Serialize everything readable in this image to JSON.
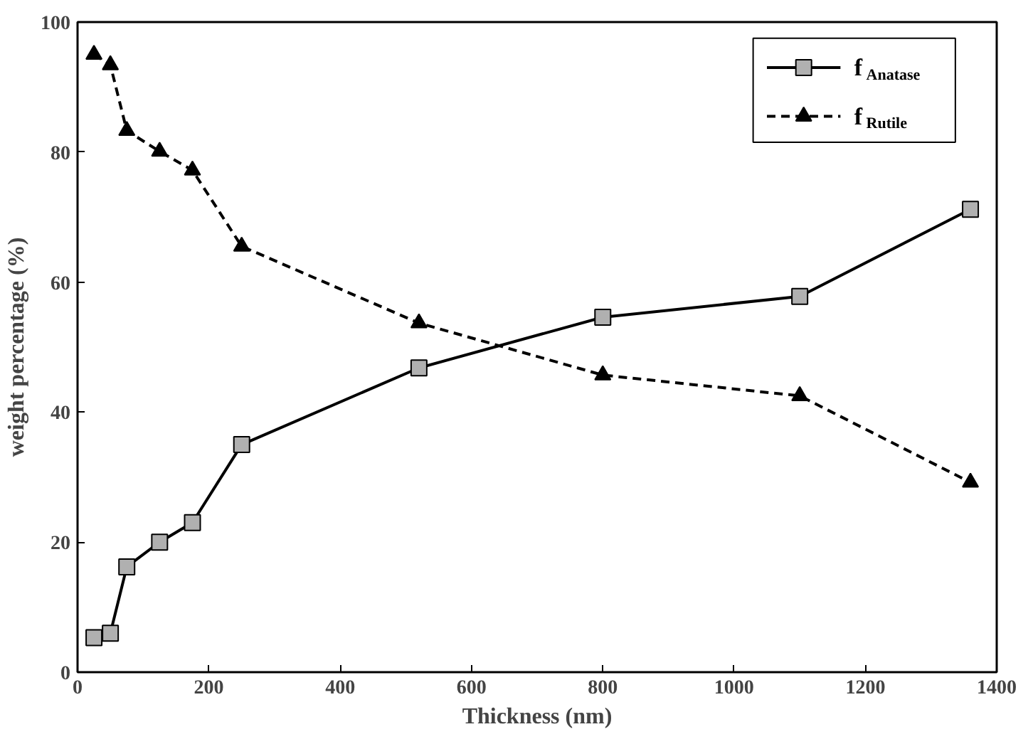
{
  "chart_data": {
    "type": "line",
    "xlabel": "Thickness (nm)",
    "ylabel": "weight percentage (%)",
    "x": [
      25,
      50,
      75,
      125,
      175,
      250,
      520,
      800,
      1100,
      1360
    ],
    "series": [
      {
        "name": "f$_{Anatase}$",
        "color": "#000000",
        "colors": [
          "#b0b0b0",
          "#b0b0b0",
          "#b0b0b0",
          "#b0b0b0",
          "#b0b0b0",
          "#b0b0b0",
          "#b0b0b0",
          "#b0b0b0",
          "#b0b0b0",
          "#b0b0b0"
        ],
        "marker": "square",
        "line_style": "solid",
        "values": [
          5.3,
          6,
          16.2,
          20,
          23,
          35,
          46.8,
          54.6,
          57.8,
          71.2
        ]
      },
      {
        "name": "f$_{Rutile}$",
        "color": "#000000",
        "colors": [
          "#000000",
          "#000000",
          "#000000",
          "#000000",
          "#000000",
          "#000000",
          "#000000",
          "#000000",
          "#000000",
          "#000000"
        ],
        "marker": "triangle",
        "line_style": "dashed",
        "values": [
          95,
          93.4,
          83.3,
          80.1,
          77.2,
          65.5,
          53.7,
          45.7,
          42.5,
          29.2
        ]
      }
    ],
    "xlim": [
      0,
      1400
    ],
    "ylim": [
      0,
      100
    ],
    "xticks": [
      0,
      200,
      400,
      600,
      800,
      1000,
      1200,
      1400
    ],
    "yticks": [
      0,
      20,
      40,
      60,
      80,
      100
    ],
    "grid": false,
    "legend": "top right"
  }
}
